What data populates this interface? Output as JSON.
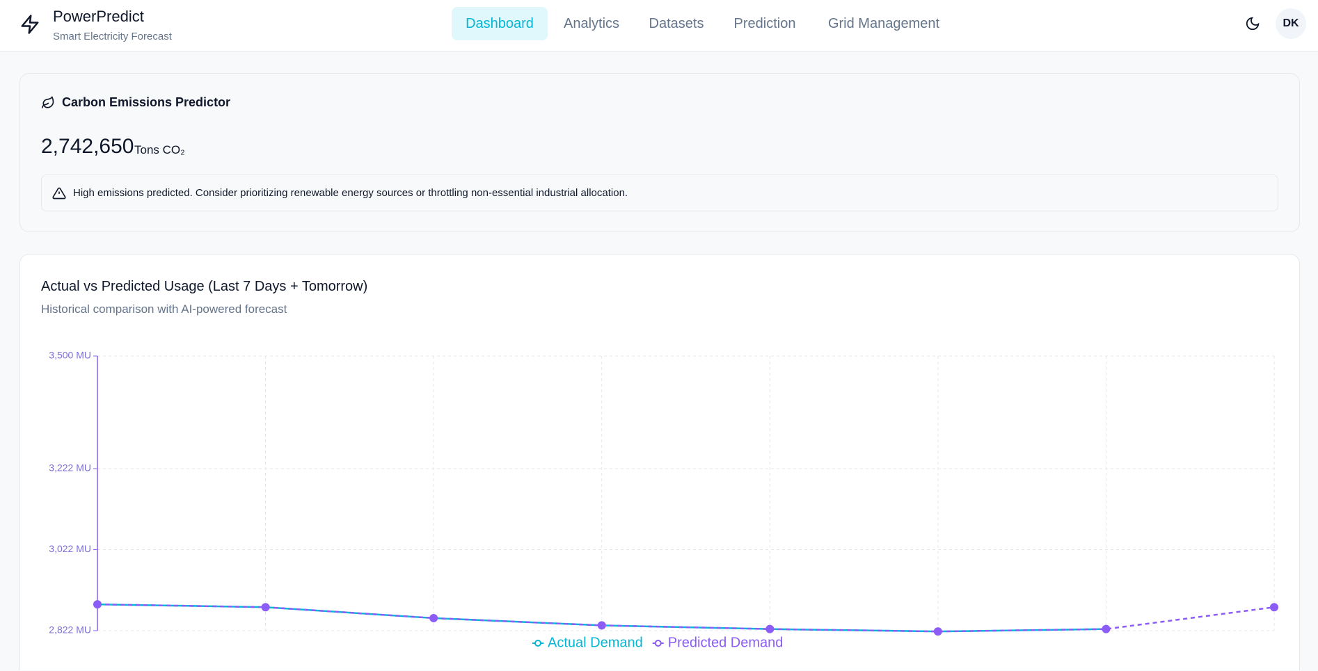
{
  "header": {
    "brand": "PowerPredict",
    "tagline": "Smart Electricity Forecast",
    "nav": [
      "Dashboard",
      "Analytics",
      "Datasets",
      "Prediction",
      "Grid Management"
    ],
    "avatar": "DK"
  },
  "emissions": {
    "title": "Carbon Emissions Predictor",
    "value": "2,742,650",
    "unit": "Tons CO₂",
    "alert": "High emissions predicted. Consider prioritizing renewable energy sources or throttling non-essential industrial allocation."
  },
  "chart_data": {
    "type": "line",
    "title": "Actual vs Predicted Usage (Last 7 Days + Tomorrow)",
    "subtitle": "Historical comparison with AI-powered forecast",
    "categories": [
      null,
      null,
      null,
      null,
      null,
      null,
      null,
      null
    ],
    "series": [
      {
        "name": "Actual Demand",
        "color": "#06b6d4",
        "values": [
          2887,
          2880,
          2853,
          2835,
          2826,
          2820,
          2826,
          null
        ]
      },
      {
        "name": "Predicted Demand",
        "color": "#8b5cf6",
        "values": [
          2887,
          2880,
          2853,
          2835,
          2826,
          2820,
          2826,
          2880
        ],
        "dashed": true
      }
    ],
    "ylim": [
      2822,
      3500
    ],
    "yticks": [
      {
        "value": 2822,
        "label": "2,822 MU"
      },
      {
        "value": 3022,
        "label": "3,022 MU"
      },
      {
        "value": 3222,
        "label": "3,222 MU"
      },
      {
        "value": 3500,
        "label": "3,500 MU"
      }
    ],
    "grid": true
  }
}
